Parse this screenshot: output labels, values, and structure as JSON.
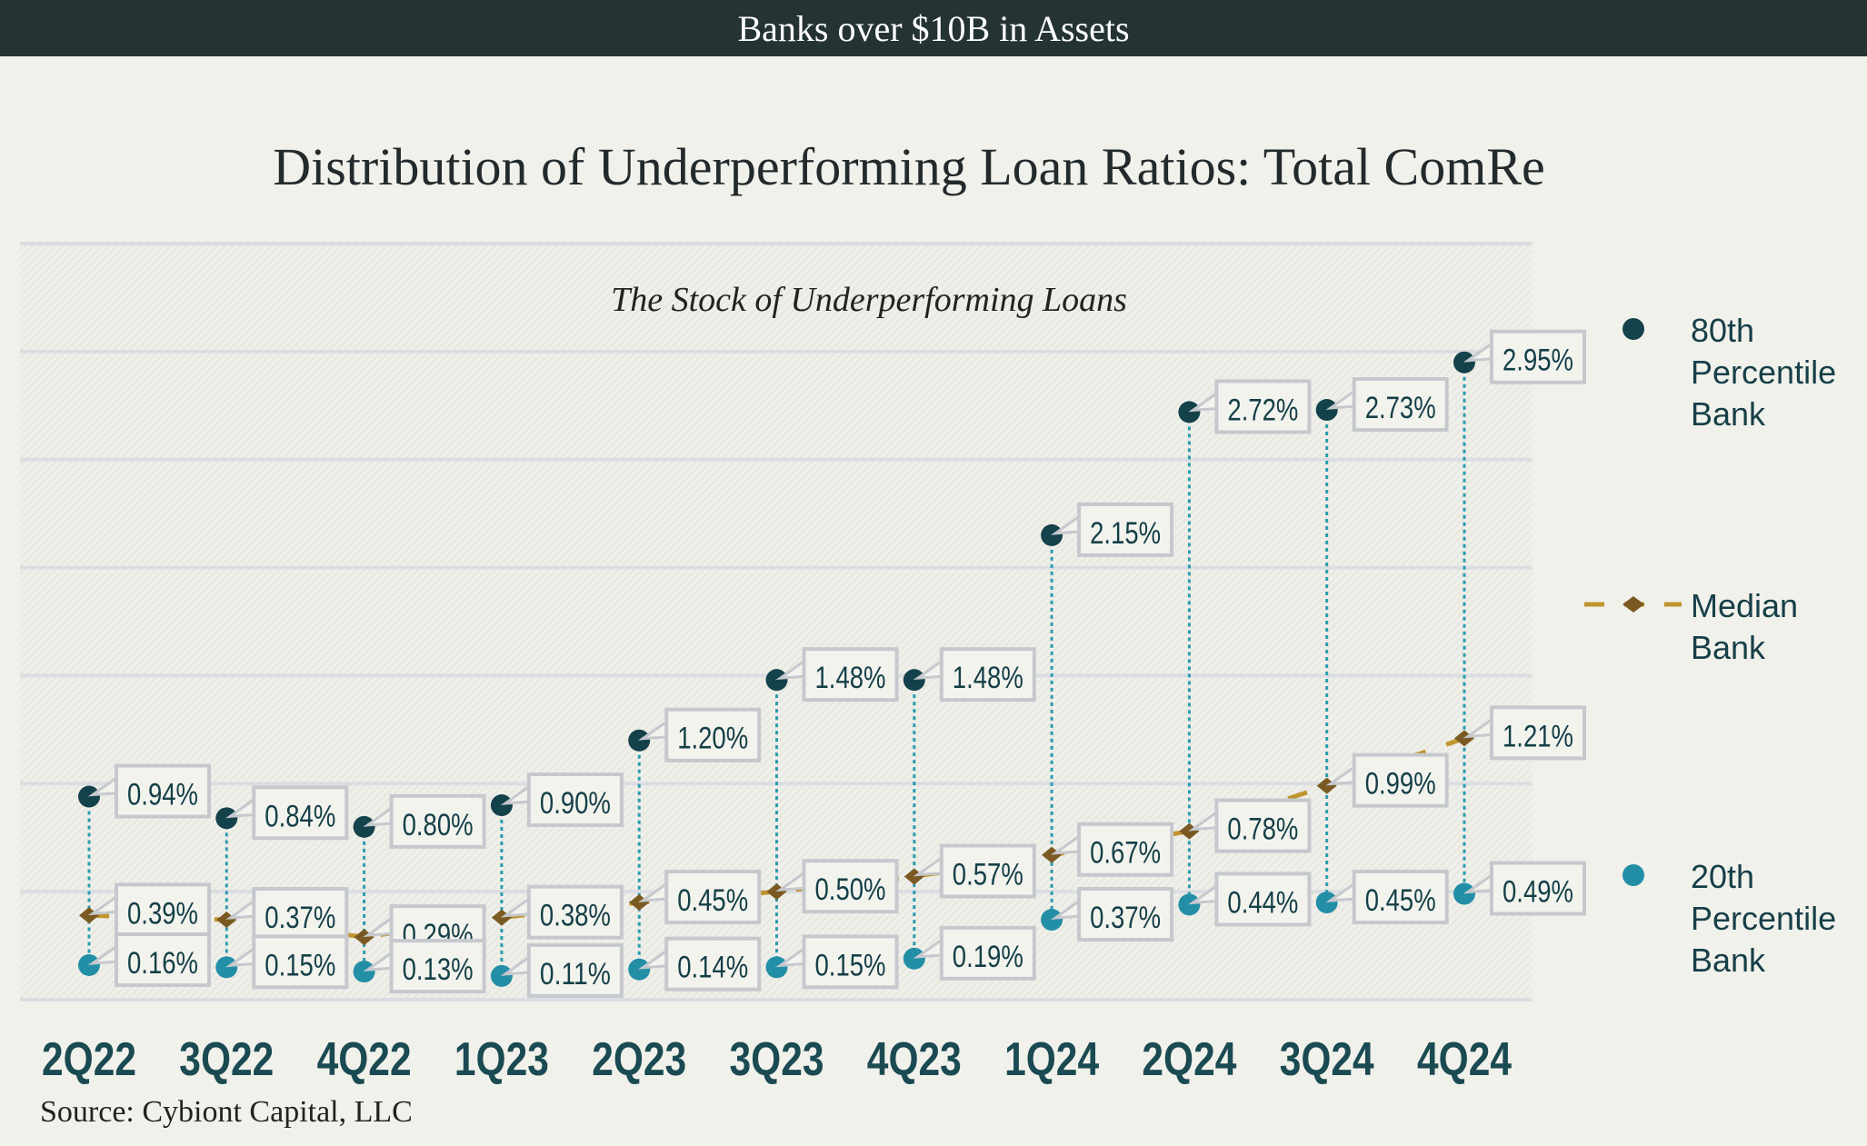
{
  "header": {
    "banner": "Banks over  $10B in Assets"
  },
  "footer": {
    "source": "Source: Cybiont Capital, LLC"
  },
  "chart_data": {
    "type": "scatter",
    "title": "Distribution of Underperforming Loan Ratios: Total ComRe",
    "subtitle": "The Stock of Underperforming Loans",
    "categories": [
      "2Q22",
      "3Q22",
      "4Q22",
      "1Q23",
      "2Q23",
      "3Q23",
      "4Q23",
      "1Q24",
      "2Q24",
      "3Q24",
      "4Q24"
    ],
    "ylim": [
      0,
      3.5
    ],
    "y_grid_step": 0.5,
    "grid": true,
    "legend_placement": "right",
    "series": [
      {
        "name": "80th Percentile Bank",
        "legend_lines": [
          "80th",
          "Percentile",
          "Bank"
        ],
        "color": "#14424b",
        "marker": "circle",
        "values": [
          0.94,
          0.84,
          0.8,
          0.9,
          1.2,
          1.48,
          1.48,
          2.15,
          2.72,
          2.73,
          2.95
        ]
      },
      {
        "name": "Median Bank",
        "legend_lines": [
          "Median",
          "Bank"
        ],
        "color": "#7a5a22",
        "line_color": "#c0952f",
        "marker": "diamond",
        "line": "dashed",
        "values": [
          0.39,
          0.37,
          0.29,
          0.38,
          0.45,
          0.5,
          0.57,
          0.67,
          0.78,
          0.99,
          1.21
        ]
      },
      {
        "name": "20th Percentile Bank",
        "legend_lines": [
          "20th",
          "Percentile",
          "Bank"
        ],
        "color": "#238fa7",
        "marker": "circle",
        "values": [
          0.16,
          0.15,
          0.13,
          0.11,
          0.14,
          0.15,
          0.19,
          0.37,
          0.44,
          0.45,
          0.49
        ]
      }
    ],
    "connector_color": "#2a9bb0",
    "label_text_color": "#143f47"
  }
}
